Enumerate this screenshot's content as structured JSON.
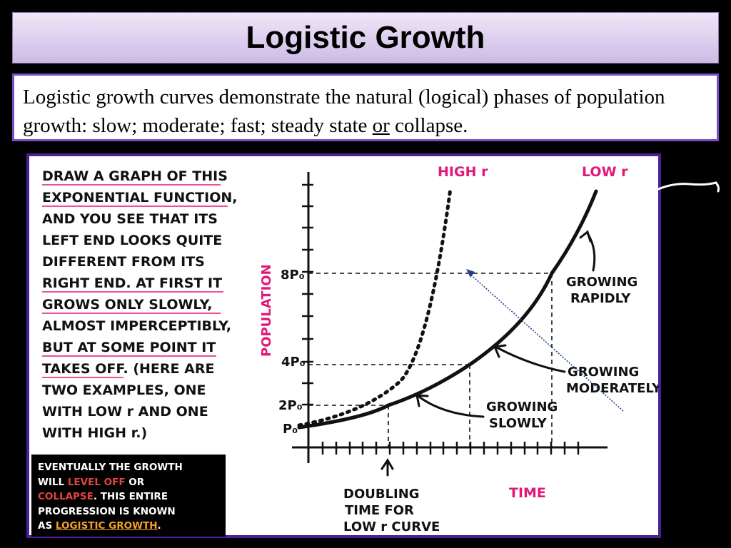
{
  "slide": {
    "title": "Logistic Growth",
    "description": {
      "part1": "Logistic growth curves demonstrate the natural (logical) phases of population growth: slow; moderate; fast; steady state ",
      "underlined": "or",
      "part2": " collapse."
    }
  },
  "diagram": {
    "left_text": [
      "DRAW A GRAPH OF THIS",
      "EXPONENTIAL FUNCTION,",
      "AND YOU SEE THAT ITS",
      "LEFT END LOOKS QUITE",
      "DIFFERENT FROM ITS",
      "RIGHT END. AT FIRST IT",
      "GROWS ONLY SLOWLY,",
      "ALMOST IMPERCEPTIBLY,",
      "BUT AT SOME POINT IT",
      "TAKES OFF. (HERE ARE",
      "TWO EXAMPLES, ONE",
      "WITH LOW r AND ONE",
      "WITH HIGH r.)"
    ],
    "curve_labels": {
      "high_r": "HIGH r",
      "low_r": "LOW r"
    },
    "axis": {
      "y_label": "POPULATION",
      "x_label": "TIME"
    },
    "y_ticks": {
      "p0": "P₀",
      "two_p0": "2P₀",
      "four_p0": "4P₀",
      "eight_p0": "8P₀"
    },
    "annotations": {
      "growing_rapidly": [
        "GROWING",
        "RAPIDLY"
      ],
      "growing_moderately": [
        "GROWING",
        "MODERATELY"
      ],
      "growing_slowly": [
        "GROWING",
        "SLOWLY"
      ],
      "doubling_time": [
        "DOUBLING",
        "TIME FOR",
        "LOW r CURVE"
      ]
    },
    "note": {
      "line1": "EVENTUALLY THE GROWTH",
      "line2a": "WILL ",
      "level_off": "LEVEL OFF",
      "line2b": " OR",
      "collapse": "COLLAPSE",
      "line3b": ".  THIS ENTIRE",
      "line4": "PROGRESSION IS KNOWN",
      "line5a": "AS ",
      "logistic": "LOGISTIC GROWTH",
      "line5b": "."
    },
    "colors": {
      "accent_magenta": "#e0187a",
      "border_purple": "#4a1f9a",
      "dotted_arrow": "#1f3f8f"
    }
  }
}
